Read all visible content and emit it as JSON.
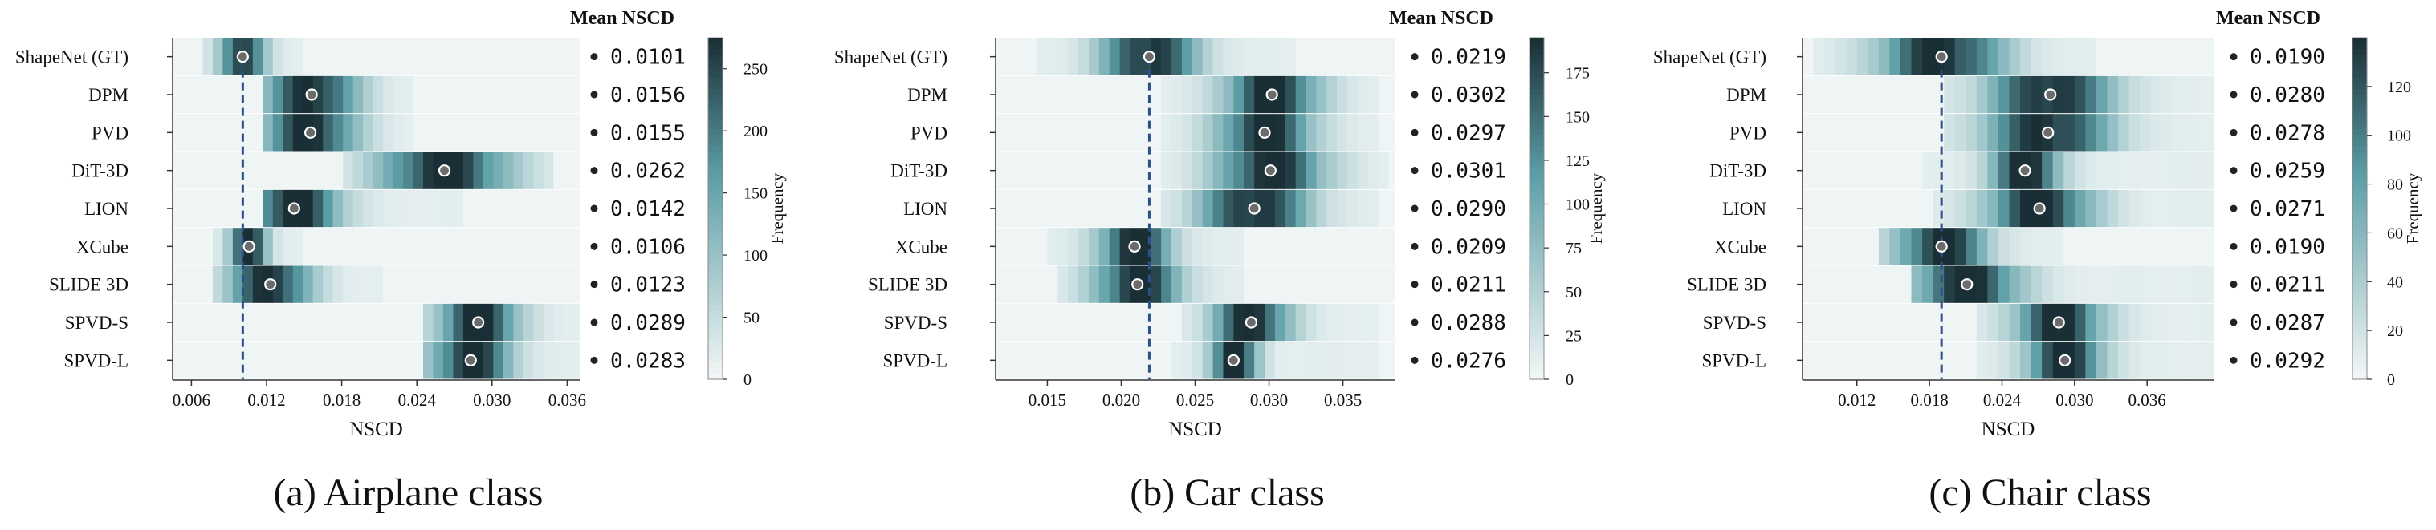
{
  "chart_data": [
    {
      "type": "heatmap",
      "panel_caption": "(a) Airplane class",
      "xlabel": "NSCD",
      "colorbar_label": "Frequency",
      "stat_title": "Mean NSCD",
      "xlim": [
        0.0045,
        0.037
      ],
      "xticks": [
        0.006,
        0.012,
        0.018,
        0.024,
        0.03,
        0.036
      ],
      "xtick_labels": [
        "0.006",
        "0.012",
        "0.018",
        "0.024",
        "0.030",
        "0.036"
      ],
      "bin_width": 0.0008,
      "cmax": 275,
      "cticks": [
        0,
        50,
        100,
        150,
        200,
        250
      ],
      "gt_line_x": 0.0101,
      "methods": [
        {
          "name": "ShapeNet (GT)",
          "mean": 0.0101,
          "mean_label": "0.0101",
          "spread": 0.0012,
          "lo": 0.007,
          "hi": 0.0145
        },
        {
          "name": "DPM",
          "mean": 0.0156,
          "mean_label": "0.0156",
          "spread": 0.0025,
          "lo": 0.0115,
          "hi": 0.024
        },
        {
          "name": "PVD",
          "mean": 0.0155,
          "mean_label": "0.0155",
          "spread": 0.0025,
          "lo": 0.0115,
          "hi": 0.024
        },
        {
          "name": "DiT-3D",
          "mean": 0.0262,
          "mean_label": "0.0262",
          "spread": 0.0035,
          "lo": 0.018,
          "hi": 0.0345
        },
        {
          "name": "LION",
          "mean": 0.0142,
          "mean_label": "0.0142",
          "spread": 0.0025,
          "lo": 0.0115,
          "hi": 0.0275
        },
        {
          "name": "XCube",
          "mean": 0.0106,
          "mean_label": "0.0106",
          "spread": 0.001,
          "lo": 0.0075,
          "hi": 0.0145
        },
        {
          "name": "SLIDE 3D",
          "mean": 0.0123,
          "mean_label": "0.0123",
          "spread": 0.0022,
          "lo": 0.0075,
          "hi": 0.0215
        },
        {
          "name": "SPVD-S",
          "mean": 0.0289,
          "mean_label": "0.0289",
          "spread": 0.0022,
          "lo": 0.0245,
          "hi": 0.037
        },
        {
          "name": "SPVD-L",
          "mean": 0.0283,
          "mean_label": "0.0283",
          "spread": 0.0022,
          "lo": 0.0245,
          "hi": 0.037
        }
      ]
    },
    {
      "type": "heatmap",
      "panel_caption": "(b) Car class",
      "xlabel": "NSCD",
      "colorbar_label": "Frequency",
      "stat_title": "Mean NSCD",
      "xlim": [
        0.0115,
        0.0385
      ],
      "xticks": [
        0.015,
        0.02,
        0.025,
        0.03,
        0.035
      ],
      "xtick_labels": [
        "0.015",
        "0.020",
        "0.025",
        "0.030",
        "0.035"
      ],
      "bin_width": 0.0007,
      "cmax": 195,
      "cticks": [
        0,
        25,
        50,
        75,
        100,
        125,
        150,
        175
      ],
      "gt_line_x": 0.0219,
      "methods": [
        {
          "name": "ShapeNet (GT)",
          "mean": 0.0219,
          "mean_label": "0.0219",
          "spread": 0.0022,
          "lo": 0.014,
          "hi": 0.0315
        },
        {
          "name": "DPM",
          "mean": 0.0302,
          "mean_label": "0.0302",
          "spread": 0.0022,
          "lo": 0.0225,
          "hi": 0.0375
        },
        {
          "name": "PVD",
          "mean": 0.0297,
          "mean_label": "0.0297",
          "spread": 0.0022,
          "lo": 0.0225,
          "hi": 0.0375
        },
        {
          "name": "DiT-3D",
          "mean": 0.0301,
          "mean_label": "0.0301",
          "spread": 0.0025,
          "lo": 0.0225,
          "hi": 0.038
        },
        {
          "name": "LION",
          "mean": 0.029,
          "mean_label": "0.0290",
          "spread": 0.0025,
          "lo": 0.0225,
          "hi": 0.0375
        },
        {
          "name": "XCube",
          "mean": 0.0209,
          "mean_label": "0.0209",
          "spread": 0.0017,
          "lo": 0.015,
          "hi": 0.0285
        },
        {
          "name": "SLIDE 3D",
          "mean": 0.0211,
          "mean_label": "0.0211",
          "spread": 0.002,
          "lo": 0.0155,
          "hi": 0.0285
        },
        {
          "name": "SPVD-S",
          "mean": 0.0288,
          "mean_label": "0.0288",
          "spread": 0.0018,
          "lo": 0.024,
          "hi": 0.0375
        },
        {
          "name": "SPVD-L",
          "mean": 0.0276,
          "mean_label": "0.0276",
          "spread": 0.0011,
          "lo": 0.0235,
          "hi": 0.0375
        }
      ]
    },
    {
      "type": "heatmap",
      "panel_caption": "(c) Chair class",
      "xlabel": "NSCD",
      "colorbar_label": "Frequency",
      "stat_title": "Mean NSCD",
      "xlim": [
        0.0075,
        0.0415
      ],
      "xticks": [
        0.012,
        0.018,
        0.024,
        0.03,
        0.036
      ],
      "xtick_labels": [
        "0.012",
        "0.018",
        "0.024",
        "0.030",
        "0.036"
      ],
      "bin_width": 0.0009,
      "cmax": 140,
      "cticks": [
        0,
        20,
        40,
        60,
        80,
        100,
        120
      ],
      "gt_line_x": 0.019,
      "methods": [
        {
          "name": "ShapeNet (GT)",
          "mean": 0.019,
          "mean_label": "0.0190",
          "spread": 0.0035,
          "lo": 0.0085,
          "hi": 0.032
        },
        {
          "name": "DPM",
          "mean": 0.028,
          "mean_label": "0.0280",
          "spread": 0.0035,
          "lo": 0.019,
          "hi": 0.0415
        },
        {
          "name": "PVD",
          "mean": 0.0278,
          "mean_label": "0.0278",
          "spread": 0.0035,
          "lo": 0.019,
          "hi": 0.0415
        },
        {
          "name": "DiT-3D",
          "mean": 0.0259,
          "mean_label": "0.0259",
          "spread": 0.002,
          "lo": 0.0175,
          "hi": 0.0415
        },
        {
          "name": "LION",
          "mean": 0.0271,
          "mean_label": "0.0271",
          "spread": 0.003,
          "lo": 0.0185,
          "hi": 0.0415
        },
        {
          "name": "XCube",
          "mean": 0.019,
          "mean_label": "0.0190",
          "spread": 0.0025,
          "lo": 0.0135,
          "hi": 0.0295
        },
        {
          "name": "SLIDE 3D",
          "mean": 0.0211,
          "mean_label": "0.0211",
          "spread": 0.003,
          "lo": 0.0165,
          "hi": 0.0415
        },
        {
          "name": "SPVD-S",
          "mean": 0.0287,
          "mean_label": "0.0287",
          "spread": 0.0025,
          "lo": 0.022,
          "hi": 0.0415
        },
        {
          "name": "SPVD-L",
          "mean": 0.0292,
          "mean_label": "0.0292",
          "spread": 0.0022,
          "lo": 0.022,
          "hi": 0.0415
        }
      ]
    }
  ],
  "colors": {
    "cmap_low": "#f3f7f7",
    "cmap_mid": "#5c9ea6",
    "cmap_high": "#1a2e35",
    "mean_dot": "#6b6b6b",
    "gt_line": "#2c4f8a",
    "axis": "#333333"
  }
}
